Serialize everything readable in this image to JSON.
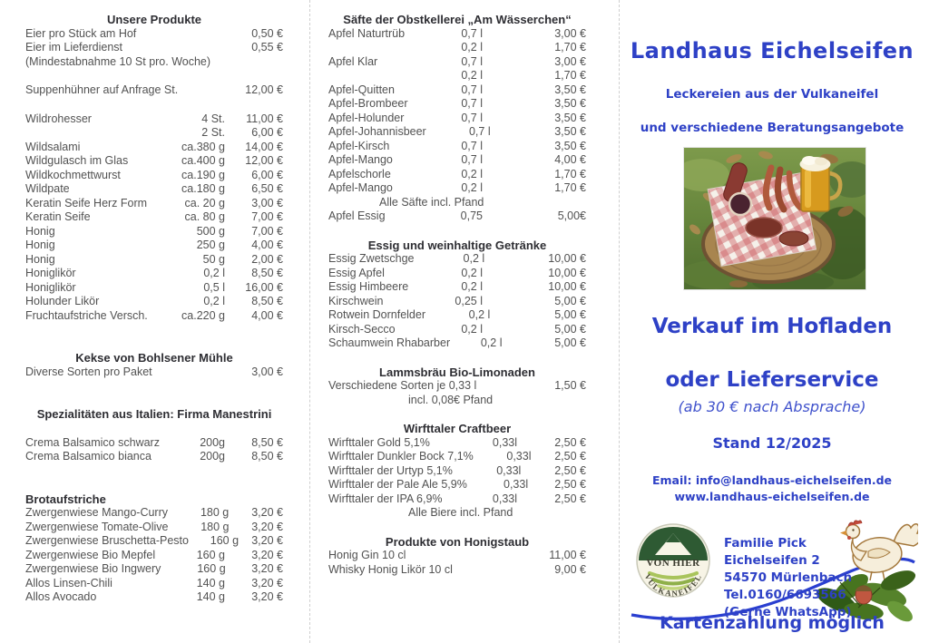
{
  "colors": {
    "accent_blue": "#2e41c6",
    "body_gray": "#525252",
    "header_dark": "#2e2e33",
    "fold_line": "#cfcfcf"
  },
  "price_columns": [
    {
      "id": "left",
      "sections": [
        {
          "title": "Unsere Produkte",
          "rows": [
            {
              "name": "Eier pro Stück am Hof",
              "qty": "",
              "price": "0,50 €"
            },
            {
              "name": "Eier im Lieferdienst",
              "qty": "",
              "price": "0,55 €"
            },
            {
              "note": "(Mindestabnahme  10 St pro. Woche)"
            },
            {
              "gap": 16
            },
            {
              "name": "Suppenhühner auf Anfrage St.",
              "qty": "",
              "price": "12,00 €"
            },
            {
              "gap": 16
            },
            {
              "name": "Wildrohesser",
              "qty": "4 St.",
              "price": "11,00 €"
            },
            {
              "name": "",
              "qty": "2 St.",
              "price": "6,00 €"
            },
            {
              "name": "Wildsalami",
              "qty": "ca.380 g",
              "price": "14,00 €"
            },
            {
              "name": "Wildgulasch im Glas",
              "qty": "ca.400 g",
              "price": "12,00 €"
            },
            {
              "name": "Wildkochmettwurst",
              "qty": "ca.190 g",
              "price": "6,00 €"
            },
            {
              "name": "Wildpate",
              "qty": "ca.180 g",
              "price": "6,50 €"
            },
            {
              "name": "Keratin Seife Herz Form",
              "qty": "ca. 20 g",
              "price": "3,00 €"
            },
            {
              "name": "Keratin Seife",
              "qty": "ca. 80 g",
              "price": "7,00 €"
            },
            {
              "name": "Honig",
              "qty": "500 g",
              "price": "7,00 €"
            },
            {
              "name": "Honig",
              "qty": "250 g",
              "price": "4,00 €"
            },
            {
              "name": "Honig",
              "qty": "50 g",
              "price": "2,00 €"
            },
            {
              "name": "Honiglikör",
              "qty": "0,2 l",
              "price": "8,50 €"
            },
            {
              "name": "Honiglikör",
              "qty": "0,5 l",
              "price": "16,00 €"
            },
            {
              "name": "Holunder Likör",
              "qty": "0,2 l",
              "price": "8,50 €"
            },
            {
              "name": "Fruchtaufstriche Versch.",
              "qty": "ca.220 g",
              "price": "4,00 €"
            }
          ]
        },
        {
          "title": "Kekse von Bohlsener Mühle",
          "gap_before": 31,
          "rows": [
            {
              "name": "Diverse Sorten pro Paket",
              "qty": "",
              "price": "3,00 €"
            }
          ]
        },
        {
          "title": "Spezialitäten aus Italien: Firma Manestrini",
          "gap_before": 31,
          "rows": [
            {
              "gap": 16
            },
            {
              "name": "Crema Balsamico schwarz",
              "qty": "200g",
              "price": "8,50 €"
            },
            {
              "name": "Crema Balsamico bianca",
              "qty": "200g",
              "price": "8,50 €"
            }
          ]
        },
        {
          "title": "Brotaufstriche",
          "align": "left",
          "gap_before": 31,
          "rows": [
            {
              "name": "Zwergenwiese  Mango-Curry",
              "qty": "180 g",
              "price": "3,20 €"
            },
            {
              "name": "Zwergenwiese  Tomate-Olive",
              "qty": "180 g",
              "price": "3,20 €"
            },
            {
              "name": "Zwergenwiese  Bruschetta-Pesto",
              "qty": "160 g",
              "price": "3,20 €"
            },
            {
              "name": "Zwergenwiese  Bio Mepfel",
              "qty": "160 g",
              "price": "3,20 €"
            },
            {
              "name": "Zwergenwiese  Bio Ingwery",
              "qty": "160 g",
              "price": "3,20 €"
            },
            {
              "name": "Allos Linsen-Chili",
              "qty": "140 g",
              "price": "3,20 €"
            },
            {
              "name": "Allos Avocado",
              "qty": "140 g",
              "price": "3,20 €"
            }
          ]
        }
      ]
    },
    {
      "id": "middle",
      "sections": [
        {
          "title": "Säfte der Obstkellerei „Am Wässerchen“",
          "rows": [
            {
              "name": "Apfel Naturtrüb",
              "qty": "0,7 l",
              "price": "3,00 €"
            },
            {
              "name": "",
              "qty": "0,2 l",
              "price": "1,70 €"
            },
            {
              "name": "Apfel Klar",
              "qty": "0,7 l",
              "price": "3,00 €"
            },
            {
              "name": "",
              "qty": "0,2 l",
              "price": "1,70 €"
            },
            {
              "name": "Apfel-Quitten",
              "qty": "0,7 l",
              "price": "3,50 €"
            },
            {
              "name": "Apfel-Brombeer",
              "qty": "0,7 l",
              "price": "3,50 €"
            },
            {
              "name": "Apfel-Holunder",
              "qty": "0,7 l",
              "price": "3,50 €"
            },
            {
              "name": "Apfel-Johannisbeer",
              "qty": "0,7 l",
              "price": "3,50 €"
            },
            {
              "name": "Apfel-Kirsch",
              "qty": "0,7 l",
              "price": "3,50 €"
            },
            {
              "name": "Apfel-Mango",
              "qty": "0,7 l",
              "price": "4,00 €"
            },
            {
              "name": "Apfelschorle",
              "qty": "0,2 l",
              "price": "1,70 €"
            },
            {
              "name": "Apfel-Mango",
              "qty": "0,2 l",
              "price": "1,70 €"
            },
            {
              "note": "Alle Säfte incl. Pfand",
              "cls": "indent"
            },
            {
              "name": "Apfel Essig",
              "qty": "0,75",
              "price": "5,00€"
            }
          ]
        },
        {
          "title": "Essig  und weinhaltige Getränke",
          "gap_before": 16,
          "rows": [
            {
              "name": "Essig Zwetschge",
              "qty": "0,2 l",
              "price": "10,00 €"
            },
            {
              "name": "Essig Apfel",
              "qty": "0,2 l",
              "price": "10,00 €"
            },
            {
              "name": "Essig Himbeere",
              "qty": "0,2 l",
              "price": "10,00 €"
            },
            {
              "name": "Kirschwein",
              "qty": "0,25 l",
              "price": "5,00 €"
            },
            {
              "name": "Rotwein Dornfelder",
              "qty": "0,2 l",
              "price": "5,00 €"
            },
            {
              "name": "Kirsch-Secco",
              "qty": "0,2 l",
              "price": "5,00 €"
            },
            {
              "name": "Schaumwein Rhabarber",
              "qty": "0,2 l",
              "price": "5,00 €"
            }
          ]
        },
        {
          "title": "Lammsbräu Bio-Limonaden",
          "gap_before": 16,
          "rows": [
            {
              "name": "Verschiedene Sorten je  0,33 l",
              "qty": "",
              "price": "1,50 €"
            },
            {
              "note": "incl. 0,08€ Pfand",
              "cls": "indent2"
            }
          ]
        },
        {
          "title": "Wirfttaler Craftbeer",
          "cls": "sec-beer",
          "gap_before": 16,
          "rows": [
            {
              "name": "Wirfttaler Gold 5,1%",
              "qty": "0,33l",
              "price": "2,50 €"
            },
            {
              "name": "Wirfttaler Dunkler Bock 7,1%",
              "qty": "0,33l",
              "price": "2,50 €"
            },
            {
              "name": "Wirfttaler der Urtyp 5,1%",
              "qty": "0,33l",
              "price": "2,50 €"
            },
            {
              "name": "Wirfttaler der Pale Ale 5,9%",
              "qty": "0,33l",
              "price": "2,50 €"
            },
            {
              "name": "Wirfttaler der IPA 6,9%",
              "qty": "0,33l",
              "price": "2,50 €"
            },
            {
              "note": "Alle Biere incl. Pfand",
              "cls": "indent2"
            }
          ]
        },
        {
          "title": "Produkte von Honigstaub",
          "gap_before": 16,
          "rows": [
            {
              "name": "Honig Gin 10 cl",
              "qty": "",
              "price": "11,00 €"
            },
            {
              "name": "Whisky Honig Likör 10 cl",
              "qty": "",
              "price": "9,00 €"
            }
          ]
        }
      ]
    }
  ],
  "panel": {
    "title": "Landhaus Eichelseifen",
    "subtitle1": "Leckereien aus der Vulkaneifel",
    "subtitle2": "und verschiedene Beratungsangebote",
    "sale1": "Verkauf im Hofladen",
    "sale2": "oder Lieferservice",
    "sale_note": "(ab 30 € nach Absprache)",
    "stand": "Stand 12/2025",
    "email": "Email: info@landhaus-eichelseifen.de",
    "web": "www.landhaus-eichelseifen.de",
    "logo": {
      "line1": "VON HIER",
      "arc": "VULKANEIFEL"
    },
    "contact": [
      "Familie Pick",
      "Eichelseifen 2",
      "54570 Mürlenbach",
      "Tel.0160/6693566",
      "(Gerne WhatsApp)"
    ],
    "footer": "Kartenzahlung möglich"
  }
}
